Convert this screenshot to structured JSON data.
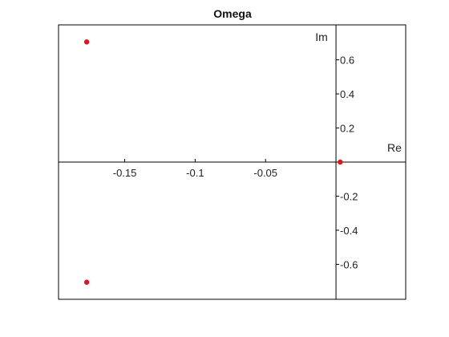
{
  "chart_data": {
    "type": "scatter",
    "title": "Omega",
    "real_axis_label": "Re",
    "imag_axis_label": "Im",
    "xlim": [
      -0.197,
      0.0495
    ],
    "ylim": [
      -0.805,
      0.805
    ],
    "x_ticks": [
      {
        "value": -0.15,
        "label": "-0.15"
      },
      {
        "value": -0.1,
        "label": "-0.1"
      },
      {
        "value": -0.05,
        "label": "-0.05"
      }
    ],
    "y_ticks": [
      {
        "value": 0.6,
        "label": "0.6"
      },
      {
        "value": 0.4,
        "label": "0.4"
      },
      {
        "value": 0.2,
        "label": "0.2"
      },
      {
        "value": -0.2,
        "label": "-0.2"
      },
      {
        "value": -0.4,
        "label": "-0.4"
      },
      {
        "value": -0.6,
        "label": "-0.6"
      }
    ],
    "points": [
      {
        "re": -0.177,
        "im": 0.705
      },
      {
        "re": -0.177,
        "im": -0.705
      },
      {
        "re": 0.003,
        "im": 0.0
      }
    ],
    "grid": false,
    "colors": {
      "point": "#e0141e",
      "axis": "#000000",
      "frame": "#000000"
    }
  }
}
